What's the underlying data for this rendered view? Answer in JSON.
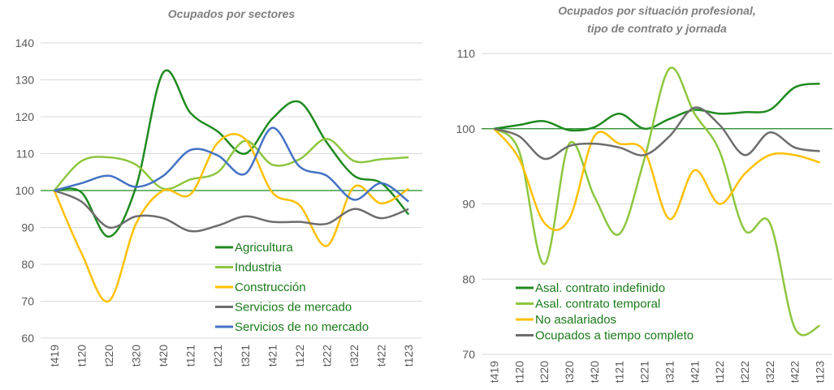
{
  "chart_data": [
    {
      "type": "line",
      "title": "Ocupados por sectores",
      "categories": [
        "t419",
        "t120",
        "t220",
        "t320",
        "t420",
        "t121",
        "t221",
        "t321",
        "t421",
        "t122",
        "t222",
        "t322",
        "t422",
        "t123"
      ],
      "series": [
        {
          "name": "Agricultura",
          "color": "#1f8a1f",
          "values": [
            100,
            99.5,
            87.5,
            101,
            132,
            121,
            116,
            110,
            119.5,
            124,
            113,
            104,
            102,
            93.5
          ]
        },
        {
          "name": "Industria",
          "color": "#8dc63f",
          "values": [
            100,
            108,
            109,
            107,
            100.5,
            103,
            105,
            113.5,
            107,
            108.5,
            114,
            108,
            108.5,
            109
          ]
        },
        {
          "name": "Construcción",
          "color": "#ffc000",
          "values": [
            100,
            83,
            70,
            91,
            100,
            99,
            113,
            114,
            99.5,
            96,
            85,
            101,
            96.5,
            100.5
          ]
        },
        {
          "name": "Servicios de mercado",
          "color": "#6d6d6d",
          "values": [
            100,
            97,
            90,
            93,
            92.5,
            89,
            90.5,
            93,
            91.5,
            91.5,
            91,
            95,
            92.5,
            95
          ]
        },
        {
          "name": "Servicios de no mercado",
          "color": "#4472c4",
          "values": [
            100,
            102,
            104,
            101,
            104,
            111,
            109.5,
            104.5,
            117,
            106.5,
            104,
            97.5,
            102,
            97
          ]
        }
      ],
      "hline": 100,
      "ylim": [
        60,
        140
      ],
      "yticks": [
        60,
        70,
        80,
        90,
        100,
        110,
        120,
        130,
        140
      ],
      "grid": true
    },
    {
      "type": "line",
      "title": "Ocupados por situación profesional, tipo de contrato y jornada",
      "categories": [
        "t419",
        "t120",
        "t220",
        "t320",
        "t420",
        "t121",
        "t221",
        "t321",
        "t421",
        "t122",
        "t222",
        "t322",
        "t422",
        "t123"
      ],
      "series": [
        {
          "name": "Asal. contrato indefinido",
          "color": "#1f8a1f",
          "values": [
            100,
            100.5,
            101,
            99.8,
            100.2,
            102,
            100,
            101.3,
            102.5,
            102,
            102.2,
            102.5,
            105.5,
            106
          ]
        },
        {
          "name": "Asal. contrato temporal",
          "color": "#8dc63f",
          "values": [
            100,
            97,
            82,
            98,
            91,
            86,
            96,
            108,
            102,
            97,
            86.5,
            87.5,
            73.5,
            73.8
          ]
        },
        {
          "name": "No asalariados",
          "color": "#ffc000",
          "values": [
            100,
            96,
            87.5,
            88,
            99,
            98,
            97,
            88,
            94.5,
            90,
            94,
            96.5,
            96.5,
            95.5
          ]
        },
        {
          "name": "Ocupados a tiempo completo",
          "color": "#6d6d6d",
          "values": [
            100,
            99,
            96,
            97.7,
            98,
            97.5,
            96.5,
            99,
            102.8,
            100.5,
            96.5,
            99.5,
            97.5,
            97
          ]
        }
      ],
      "hline": 100,
      "ylim": [
        70,
        110
      ],
      "yticks": [
        70,
        80,
        90,
        100,
        110
      ],
      "grid": true
    }
  ]
}
